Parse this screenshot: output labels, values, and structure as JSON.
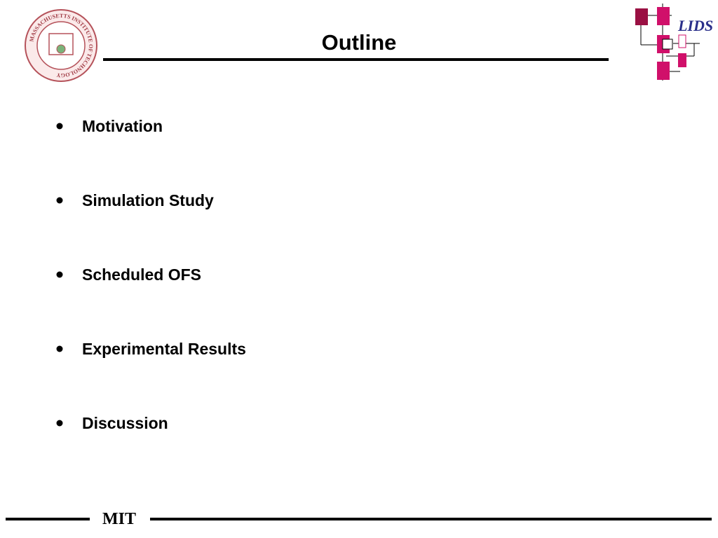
{
  "header": {
    "title": "Outline",
    "logo_text": "LIDS",
    "seal_text": "MASSACHUSETTS INSTITUTE OF TECHNOLOGY"
  },
  "items": [
    "Motivation",
    "Simulation Study",
    "Scheduled OFS",
    "Experimental Results",
    "Discussion"
  ],
  "footer": {
    "text": "MIT"
  }
}
